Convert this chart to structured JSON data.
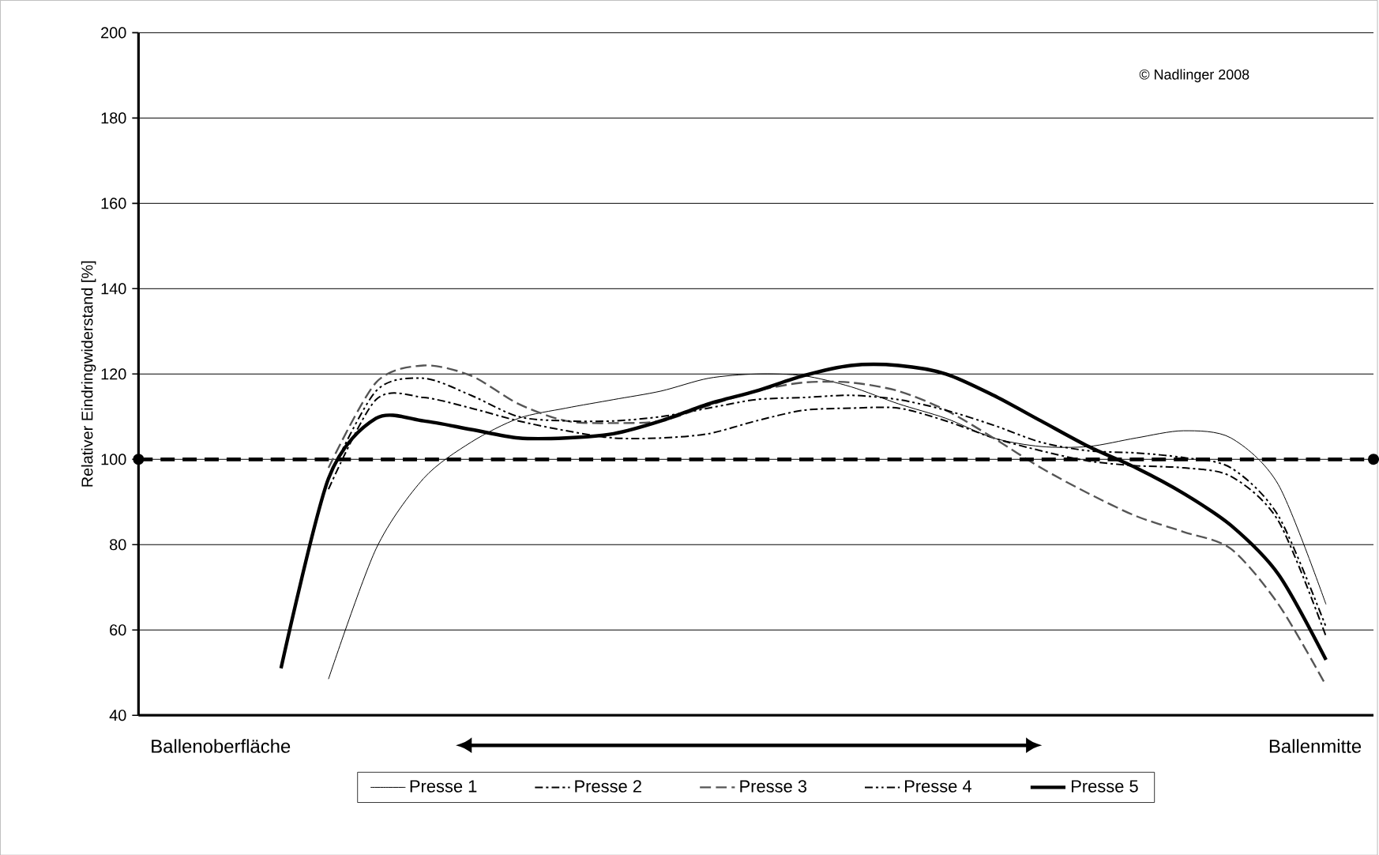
{
  "chart_data": {
    "type": "line",
    "ylabel": "Relativer Eindringwiderstand [%]",
    "categories": [
      null,
      null,
      null,
      null,
      null,
      null,
      null,
      null,
      null,
      null,
      null,
      null,
      null,
      null,
      null,
      null,
      null,
      null,
      null,
      null,
      null,
      null,
      null,
      null,
      null,
      null,
      null
    ],
    "series": [
      {
        "name": "Presse 1",
        "color": "#000000",
        "line_style": "solid",
        "values": [
          null,
          null,
          null,
          null,
          48.5,
          79,
          95.5,
          104,
          109.6,
          112,
          114,
          116,
          119,
          120,
          119.6,
          117,
          113,
          109.6,
          105,
          103,
          103,
          105,
          106.7,
          105,
          94,
          66,
          null
        ]
      },
      {
        "name": "Presse 2",
        "color": "#000000",
        "line_style": "dashdot",
        "values": [
          null,
          null,
          null,
          null,
          93,
          114,
          114.5,
          112,
          109,
          106.7,
          105,
          105,
          106,
          109,
          111.5,
          112,
          112,
          109,
          105,
          102,
          99.6,
          98.5,
          98,
          96,
          85.5,
          58.5,
          null
        ]
      },
      {
        "name": "Presse 3",
        "color": "#555555",
        "line_style": "dashed",
        "values": [
          null,
          null,
          null,
          null,
          98,
          118,
          122,
          119.6,
          113,
          109,
          108.5,
          109,
          112.6,
          116,
          118,
          118,
          116,
          111.5,
          105,
          98,
          92,
          86.7,
          83,
          79,
          66,
          47,
          null
        ]
      },
      {
        "name": "Presse 4",
        "color": "#000000",
        "line_style": "dashdotdot",
        "values": [
          null,
          null,
          null,
          null,
          95.5,
          116,
          119,
          115,
          110,
          109,
          109,
          110,
          112,
          114,
          114.5,
          115,
          114,
          111.5,
          108,
          104,
          102,
          101.5,
          100.4,
          98,
          86.7,
          60.7,
          null
        ]
      },
      {
        "name": "Presse 5",
        "color": "#000000",
        "line_style": "solid",
        "values": [
          null,
          null,
          null,
          51,
          95.5,
          109.6,
          109,
          107,
          105,
          105,
          106,
          109,
          113,
          116,
          119.6,
          122,
          122,
          120,
          115,
          109,
          103,
          98,
          92,
          84.5,
          73,
          53,
          null
        ]
      }
    ],
    "ylim": [
      40,
      200
    ],
    "yticks": [
      40,
      60,
      80,
      100,
      120,
      140,
      160,
      180,
      200
    ],
    "grid": "y",
    "legend": "bottom",
    "marker": "none",
    "ref_lines": [
      {
        "axis": "y",
        "value": 100,
        "color": "#000000",
        "line_style": "dashed"
      }
    ],
    "annotations": [
      "Ballenoberfläche",
      "Ballenmitte",
      "© Nadlinger 2008"
    ]
  }
}
